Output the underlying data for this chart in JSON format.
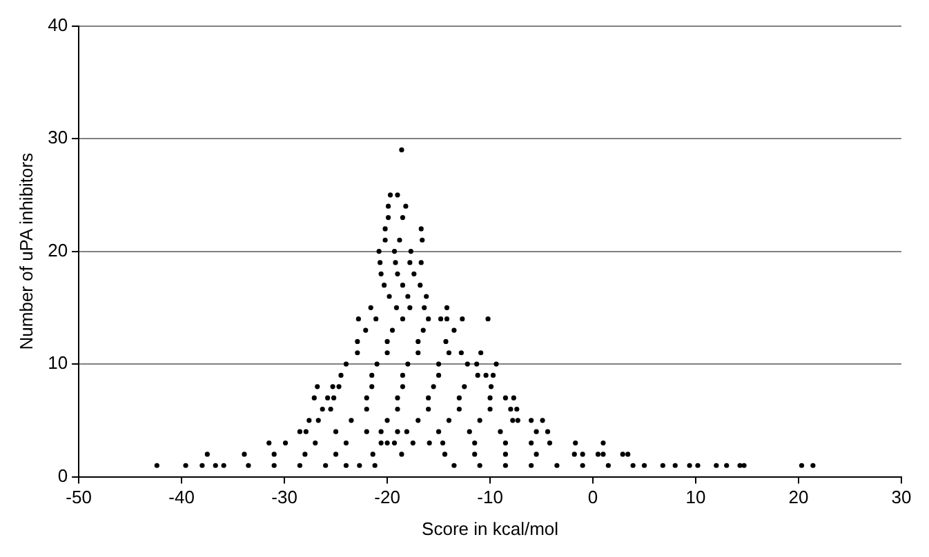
{
  "chart_data": {
    "type": "scatter",
    "xlabel": "Score in kcal/mol",
    "ylabel": "Number of uPA inhibitors",
    "x": [
      -42.4,
      -39.6,
      -38,
      -36.7,
      -35.9,
      -33.5,
      -31,
      -28.5,
      -26,
      -24,
      -22.7,
      -21.2,
      -13.5,
      -11,
      -8.5,
      -6,
      -3.5,
      -1,
      1.5,
      3.9,
      5,
      6.8,
      8,
      9.4,
      10.2,
      12,
      13,
      14.3,
      14.7,
      20.3,
      21.4,
      -37.5,
      -33.9,
      -31,
      -28,
      -25,
      -21.4,
      -18.6,
      -14.4,
      -11.5,
      -8.5,
      -5.5,
      -1.8,
      -1,
      0.5,
      1,
      2.9,
      3.4,
      -31.5,
      -29.9,
      -27,
      -24,
      -20.6,
      -20,
      -19.3,
      -17.5,
      -15.9,
      -14.6,
      -11.5,
      -8.5,
      -6,
      -4.2,
      -1.7,
      1,
      -28.5,
      -27.9,
      -25,
      -22,
      -20.6,
      -19,
      -18.1,
      -15,
      -12,
      -9,
      -5.5,
      -4.4,
      -27.6,
      -26.7,
      -23.5,
      -20,
      -17,
      -14,
      -11,
      -7.8,
      -7.3,
      -6,
      -4.9,
      -26.3,
      -25.5,
      -22,
      -19,
      -16,
      -13,
      -10,
      -8,
      -7.4,
      -27.1,
      -25.8,
      -25.2,
      -22,
      -19,
      -16,
      -13,
      -10,
      -8.5,
      -7.7,
      -26.8,
      -25.3,
      -24.7,
      -21.5,
      -18.5,
      -15.5,
      -12.5,
      -9.9,
      -24.5,
      -21.5,
      -18.5,
      -15,
      -11.2,
      -10.4,
      -9.7,
      -24,
      -21,
      -18,
      -15,
      -12.2,
      -11.3,
      -9.4,
      -22.9,
      -20,
      -17,
      -14,
      -12.8,
      -10.9,
      -22.9,
      -20,
      -17,
      -14.3,
      -22.1,
      -19.5,
      -16.5,
      -13.5,
      -22.8,
      -21.1,
      -18.5,
      -16,
      -14.8,
      -14.2,
      -12.7,
      -10.2,
      -21.6,
      -19.1,
      -17.8,
      -16.4,
      -14.2,
      -19.8,
      -18,
      -16.2,
      -20.3,
      -18.5,
      -16.8,
      -20.6,
      -19,
      -17.4,
      -20.7,
      -19.2,
      -17.8,
      -16.7,
      -20.8,
      -19.3,
      -17.7,
      -20.2,
      -18.8,
      -16.6,
      -20.2,
      -16.7,
      -19.9,
      -18.5,
      -19.9,
      -18.2,
      -19.7,
      -19,
      -18.6
    ],
    "values": [
      1,
      1,
      1,
      1,
      1,
      1,
      1,
      1,
      1,
      1,
      1,
      1,
      1,
      1,
      1,
      1,
      1,
      1,
      1,
      1,
      1,
      1,
      1,
      1,
      1,
      1,
      1,
      1,
      1,
      1,
      1,
      2,
      2,
      2,
      2,
      2,
      2,
      2,
      2,
      2,
      2,
      2,
      2,
      2,
      2,
      2,
      2,
      2,
      3,
      3,
      3,
      3,
      3,
      3,
      3,
      3,
      3,
      3,
      3,
      3,
      3,
      3,
      3,
      3,
      4,
      4,
      4,
      4,
      4,
      4,
      4,
      4,
      4,
      4,
      4,
      4,
      5,
      5,
      5,
      5,
      5,
      5,
      5,
      5,
      5,
      5,
      5,
      6,
      6,
      6,
      6,
      6,
      6,
      6,
      6,
      6,
      7,
      7,
      7,
      7,
      7,
      7,
      7,
      7,
      7,
      7,
      8,
      8,
      8,
      8,
      8,
      8,
      8,
      8,
      9,
      9,
      9,
      9,
      9,
      9,
      9,
      10,
      10,
      10,
      10,
      10,
      10,
      10,
      11,
      11,
      11,
      11,
      11,
      11,
      12,
      12,
      12,
      12,
      13,
      13,
      13,
      13,
      14,
      14,
      14,
      14,
      14,
      14,
      14,
      14,
      15,
      15,
      15,
      15,
      15,
      16,
      16,
      16,
      17,
      17,
      17,
      18,
      18,
      18,
      19,
      19,
      19,
      19,
      20,
      20,
      20,
      21,
      21,
      21,
      22,
      22,
      23,
      23,
      24,
      24,
      25,
      25,
      29
    ],
    "color": "#000000",
    "marker": "circle",
    "grid": "y",
    "xlim": [
      -50,
      30
    ],
    "xticks": [
      -50,
      -40,
      -30,
      -20,
      -10,
      0,
      10,
      20,
      30
    ],
    "ylim": [
      0,
      40
    ],
    "yticks": [
      0,
      10,
      20,
      30,
      40
    ]
  }
}
